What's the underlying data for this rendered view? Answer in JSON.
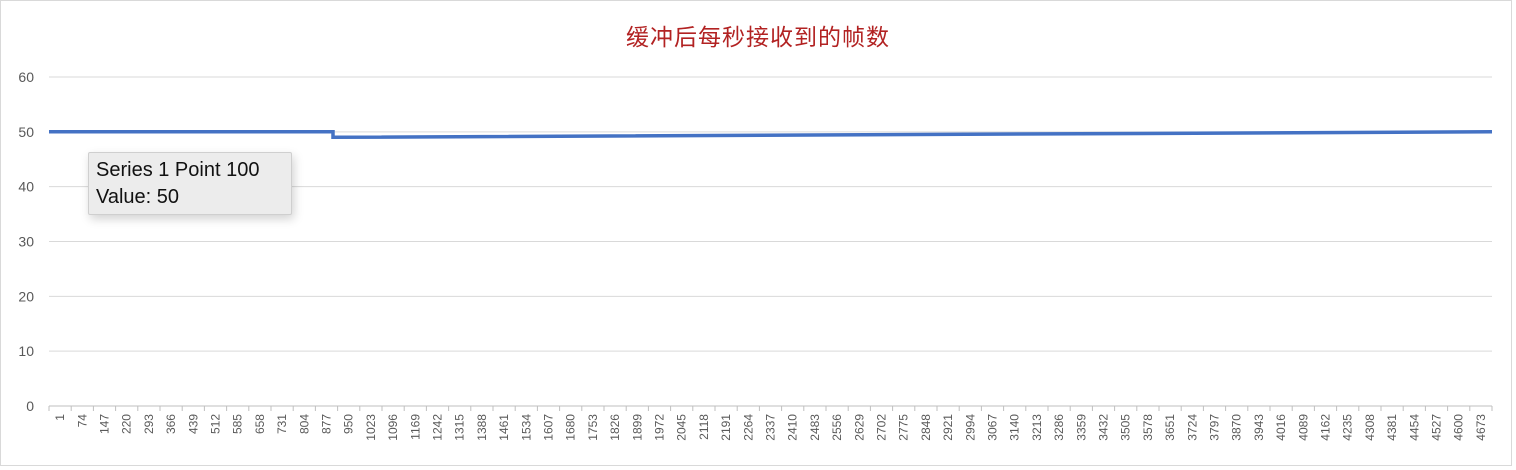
{
  "chart_data": {
    "type": "line",
    "title": "缓冲后每秒接收到的帧数",
    "xlabel": "",
    "ylabel": "",
    "ylim": [
      0,
      60
    ],
    "yticks": [
      0,
      10,
      20,
      30,
      40,
      50,
      60
    ],
    "x_tick_labels": [
      "1",
      "74",
      "147",
      "220",
      "293",
      "366",
      "439",
      "512",
      "585",
      "658",
      "731",
      "804",
      "877",
      "950",
      "1023",
      "1096",
      "1169",
      "1242",
      "1315",
      "1388",
      "1461",
      "1534",
      "1607",
      "1680",
      "1753",
      "1826",
      "1899",
      "1972",
      "2045",
      "2118",
      "2191",
      "2264",
      "2337",
      "2410",
      "2483",
      "2556",
      "2629",
      "2702",
      "2775",
      "2848",
      "2921",
      "2994",
      "3067",
      "3140",
      "3213",
      "3286",
      "3359",
      "3432",
      "3505",
      "3578",
      "3651",
      "3724",
      "3797",
      "3870",
      "3943",
      "4016",
      "4089",
      "4162",
      "4235",
      "4308",
      "4381",
      "4454",
      "4527",
      "4600",
      "4673"
    ],
    "x_range": [
      1,
      4746
    ],
    "grid": true,
    "legend": "none",
    "series": [
      {
        "color": "#4472c4",
        "points": [
          [
            1,
            50
          ],
          [
            935,
            50
          ],
          [
            935,
            49
          ],
          [
            4746,
            50
          ]
        ]
      }
    ]
  },
  "tooltip": {
    "line1": "Series 1 Point 100",
    "line2": "Value: 50"
  }
}
